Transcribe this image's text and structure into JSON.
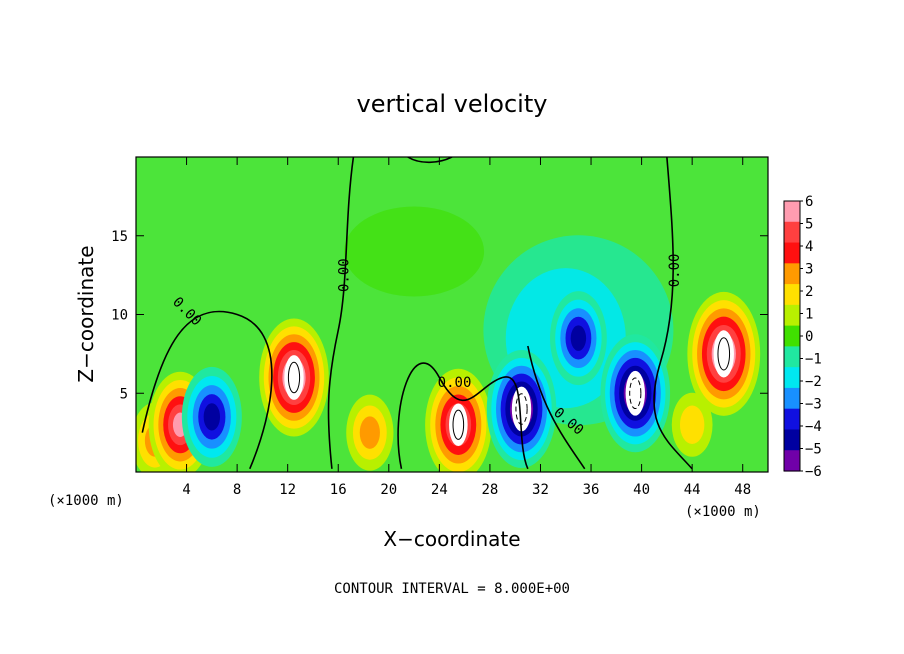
{
  "chart_data": {
    "type": "heatmap",
    "title": "vertical velocity",
    "xlabel": "X−coordinate",
    "ylabel": "Z−coordinate",
    "x_unit": "(×1000 m)",
    "x_ticks": [
      4,
      8,
      12,
      16,
      20,
      24,
      28,
      32,
      36,
      40,
      44,
      48
    ],
    "y_ticks": [
      5,
      10,
      15
    ],
    "xlim": [
      0,
      50
    ],
    "ylim": [
      0,
      20
    ],
    "colorbar": {
      "ticks": [
        6,
        5,
        4,
        3,
        2,
        1,
        0,
        -1,
        -2,
        -3,
        -4,
        -5,
        -6
      ],
      "tick_labels": [
        "6",
        "5",
        "4",
        "3",
        "2",
        "1",
        "0",
        "−1",
        "−2",
        "−3",
        "−4",
        "−5",
        "−6"
      ],
      "colors": [
        "#ff9cb0",
        "#ff4040",
        "#ff1010",
        "#ff9a00",
        "#ffe000",
        "#b8f000",
        "#40e000",
        "#20e8a0",
        "#00e8f0",
        "#1890ff",
        "#1010e0",
        "#0000a0",
        "#7000a8"
      ]
    },
    "contour_labels": [
      "0.00",
      "0.00",
      "0.00",
      "0.00",
      "0.00"
    ],
    "annotation": "CONTOUR INTERVAL = 8.000E+00",
    "features": [
      {
        "x": 1.5,
        "z": 2.0,
        "w": 3.0
      },
      {
        "x": 3.5,
        "z": 3.0,
        "w": 5.5
      },
      {
        "x": 6.0,
        "z": 3.5,
        "w": -5.0
      },
      {
        "x": 12.5,
        "z": 6.0,
        "w": 6.5
      },
      {
        "x": 18.5,
        "z": 2.5,
        "w": 3.0
      },
      {
        "x": 25.5,
        "z": 3.0,
        "w": 6.0
      },
      {
        "x": 30.5,
        "z": 4.0,
        "w": -6.5
      },
      {
        "x": 35.0,
        "z": 8.5,
        "w": -4.5
      },
      {
        "x": 39.5,
        "z": 5.0,
        "w": -6.5
      },
      {
        "x": 46.5,
        "z": 7.5,
        "w": 7.0
      },
      {
        "x": 44.0,
        "z": 3.0,
        "w": 2.0
      }
    ]
  }
}
